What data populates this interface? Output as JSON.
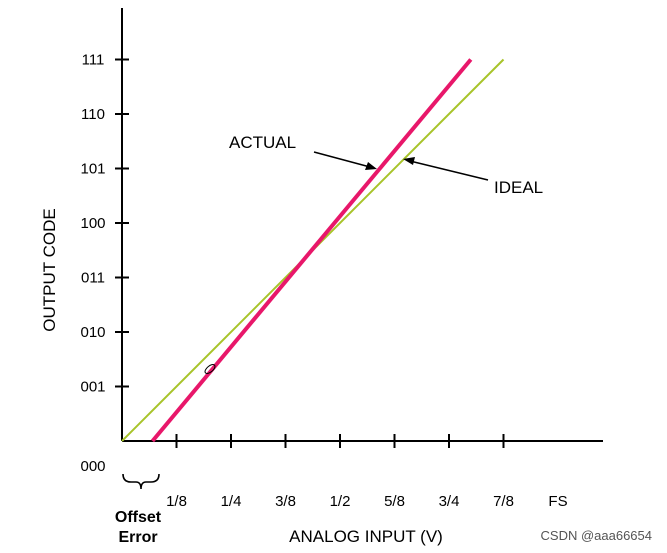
{
  "chart_data": {
    "type": "line",
    "xlabel": "ANALOG INPUT (V)",
    "ylabel": "OUTPUT CODE",
    "x_ticks": [
      "1/8",
      "1/4",
      "3/8",
      "1/2",
      "5/8",
      "3/4",
      "7/8",
      "FS"
    ],
    "y_ticks": [
      "000",
      "001",
      "010",
      "011",
      "100",
      "101",
      "110",
      "111"
    ],
    "series": [
      {
        "name": "ACTUAL",
        "color": "#e8176a",
        "x": [
          0.07,
          0.8
        ],
        "y": [
          0,
          7
        ]
      },
      {
        "name": "IDEAL",
        "color": "#a8c42a",
        "x": [
          0,
          0.875
        ],
        "y": [
          0,
          7
        ]
      }
    ],
    "annotations": {
      "actual_label": "ACTUAL",
      "ideal_label": "IDEAL",
      "offset_label_line1": "Offset",
      "offset_label_line2": "Error"
    }
  },
  "watermark": "CSDN @aaa66654"
}
